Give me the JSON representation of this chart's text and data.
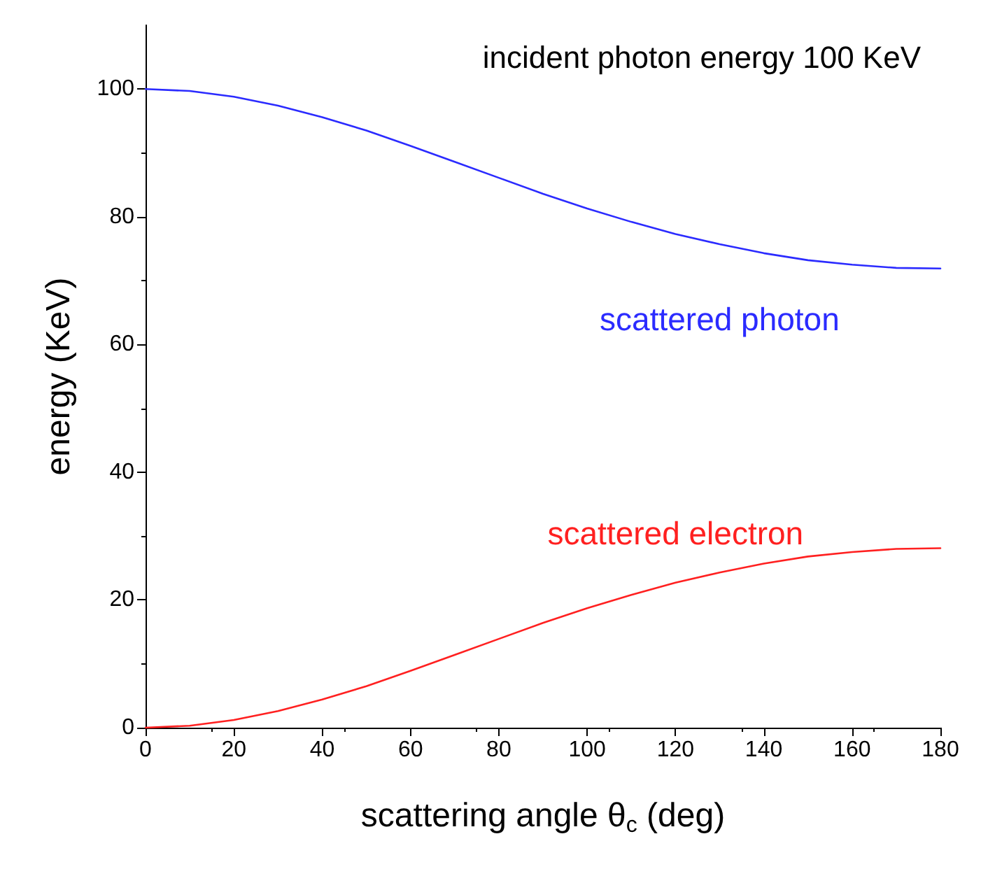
{
  "chart_data": {
    "type": "line",
    "xlabel": "scattering angle θ$_{c}$ (deg)",
    "ylabel": "energy (KeV)",
    "annotations": [
      "incident photon energy 100 KeV"
    ],
    "x": [
      0,
      10,
      20,
      30,
      40,
      50,
      60,
      70,
      80,
      90,
      100,
      110,
      120,
      130,
      140,
      150,
      160,
      170,
      180
    ],
    "series": [
      {
        "name": "scattered photon",
        "color": "#2b2bff",
        "values": [
          100,
          99.7,
          98.8,
          97.4,
          95.6,
          93.5,
          91.1,
          88.6,
          86.1,
          83.6,
          81.3,
          79.2,
          77.3,
          75.7,
          74.3,
          73.2,
          72.5,
          72.0,
          71.9
        ]
      },
      {
        "name": "scattered electron",
        "color": "#ff2020",
        "values": [
          0,
          0.3,
          1.2,
          2.6,
          4.4,
          6.5,
          8.9,
          11.4,
          13.9,
          16.4,
          18.7,
          20.8,
          22.7,
          24.3,
          25.7,
          26.8,
          27.5,
          28.0,
          28.1
        ]
      }
    ],
    "xlim": [
      0,
      180
    ],
    "xticks": [
      0,
      20,
      40,
      60,
      80,
      100,
      120,
      140,
      160,
      180
    ],
    "ylim": [
      0,
      110
    ],
    "yticks": [
      0,
      20,
      40,
      60,
      80,
      100
    ],
    "grid": false,
    "legend": false,
    "marker": "none",
    "line_style": "solid"
  }
}
